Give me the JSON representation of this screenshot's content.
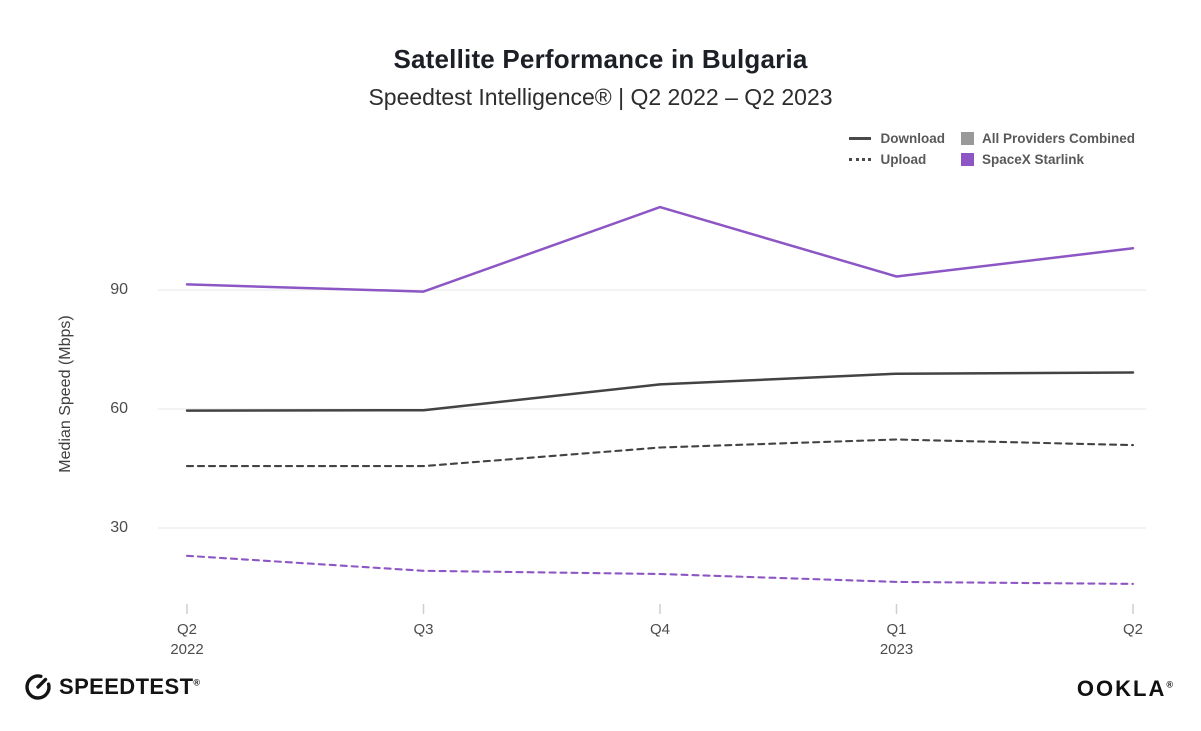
{
  "chart_data": {
    "type": "line",
    "title": "Satellite Performance in Bulgaria",
    "subtitle": "Speedtest Intelligence® | Q2 2022 – Q2 2023",
    "ylabel": "Median Speed (Mbps)",
    "y_ticks": [
      90,
      60,
      30
    ],
    "ylim": [
      10,
      117
    ],
    "grid": "horizontal-only",
    "legend_position": "top-right",
    "x_ticks": [
      {
        "quarter": "Q2",
        "year": "2022"
      },
      {
        "quarter": "Q3",
        "year": ""
      },
      {
        "quarter": "Q4",
        "year": ""
      },
      {
        "quarter": "Q1",
        "year": "2023"
      },
      {
        "quarter": "Q2",
        "year": ""
      }
    ],
    "categories": [
      "Q2 2022",
      "Q3 2022",
      "Q4 2022",
      "Q1 2023",
      "Q2 2023"
    ],
    "series": [
      {
        "name": "SpaceX Starlink Download",
        "provider": "SpaceX Starlink",
        "metric": "Download",
        "style": "solid",
        "color": "#8c57c5",
        "values": [
          91.4,
          89.6,
          110.9,
          93.4,
          100.5
        ]
      },
      {
        "name": "All Providers Combined Download",
        "provider": "All Providers Combined",
        "metric": "Download",
        "style": "solid",
        "color": "#434343",
        "values": [
          59.6,
          59.7,
          66.2,
          68.9,
          69.2
        ]
      },
      {
        "name": "All Providers Combined Upload",
        "provider": "All Providers Combined",
        "metric": "Upload",
        "style": "dashed",
        "color": "#434343",
        "values": [
          45.6,
          45.6,
          50.3,
          52.3,
          50.9
        ]
      },
      {
        "name": "SpaceX Starlink Upload",
        "provider": "SpaceX Starlink",
        "metric": "Upload",
        "style": "dashed",
        "color": "#8c57c5",
        "values": [
          23.0,
          19.2,
          18.4,
          16.4,
          15.9
        ]
      }
    ],
    "legend": {
      "sample_color": "#4a4a4a",
      "metrics": [
        {
          "label": "Download",
          "style": "solid"
        },
        {
          "label": "Upload",
          "style": "dotted"
        }
      ],
      "providers": [
        {
          "label": "All Providers Combined",
          "color": "#999999"
        },
        {
          "label": "SpaceX Starlink",
          "color": "#8c57c5"
        }
      ]
    }
  },
  "footer": {
    "speedtest_wordmark": "SPEEDTEST",
    "speedtest_tm": "®",
    "ookla_wordmark": "OOKLA",
    "ookla_tm": "®"
  }
}
